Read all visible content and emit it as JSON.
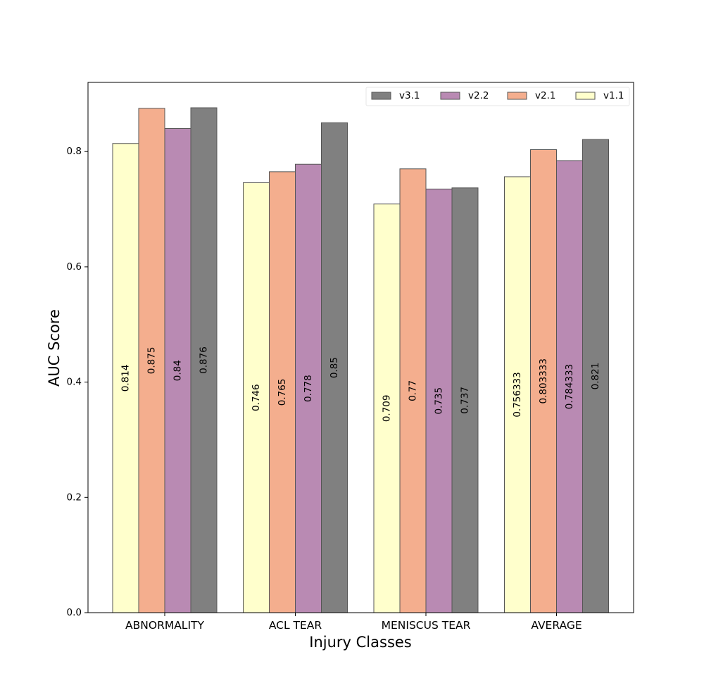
{
  "chart_data": {
    "type": "bar",
    "title": "",
    "xlabel": "Injury Classes",
    "ylabel": "AUC Score",
    "categories": [
      "ABNORMALITY",
      "ACL TEAR",
      "MENISCUS TEAR",
      "AVERAGE"
    ],
    "series": [
      {
        "name": "v1.1",
        "color": "#ffffcc",
        "values": [
          0.814,
          0.746,
          0.709,
          0.756333
        ],
        "labels": [
          "0.814",
          "0.746",
          "0.709",
          "0.756333"
        ]
      },
      {
        "name": "v2.1",
        "color": "#f4ae8e",
        "values": [
          0.875,
          0.765,
          0.77,
          0.803333
        ],
        "labels": [
          "0.875",
          "0.765",
          "0.77",
          "0.803333"
        ]
      },
      {
        "name": "v2.2",
        "color": "#b98ab3",
        "values": [
          0.84,
          0.778,
          0.735,
          0.784333
        ],
        "labels": [
          "0.84",
          "0.778",
          "0.735",
          "0.784333"
        ]
      },
      {
        "name": "v3.1",
        "color": "#808080",
        "values": [
          0.876,
          0.85,
          0.737,
          0.821
        ],
        "labels": [
          "0.876",
          "0.85",
          "0.737",
          "0.821"
        ]
      }
    ],
    "legend_order": [
      "v3.1",
      "v2.2",
      "v2.1",
      "v1.1"
    ],
    "legend_placement": "top-right",
    "ylim": [
      0.0,
      0.92
    ],
    "yticks": [
      0.0,
      0.2,
      0.4,
      0.6,
      0.8
    ],
    "ytick_labels": [
      "0.0",
      "0.2",
      "0.4",
      "0.6",
      "0.8"
    ],
    "grid": false
  }
}
